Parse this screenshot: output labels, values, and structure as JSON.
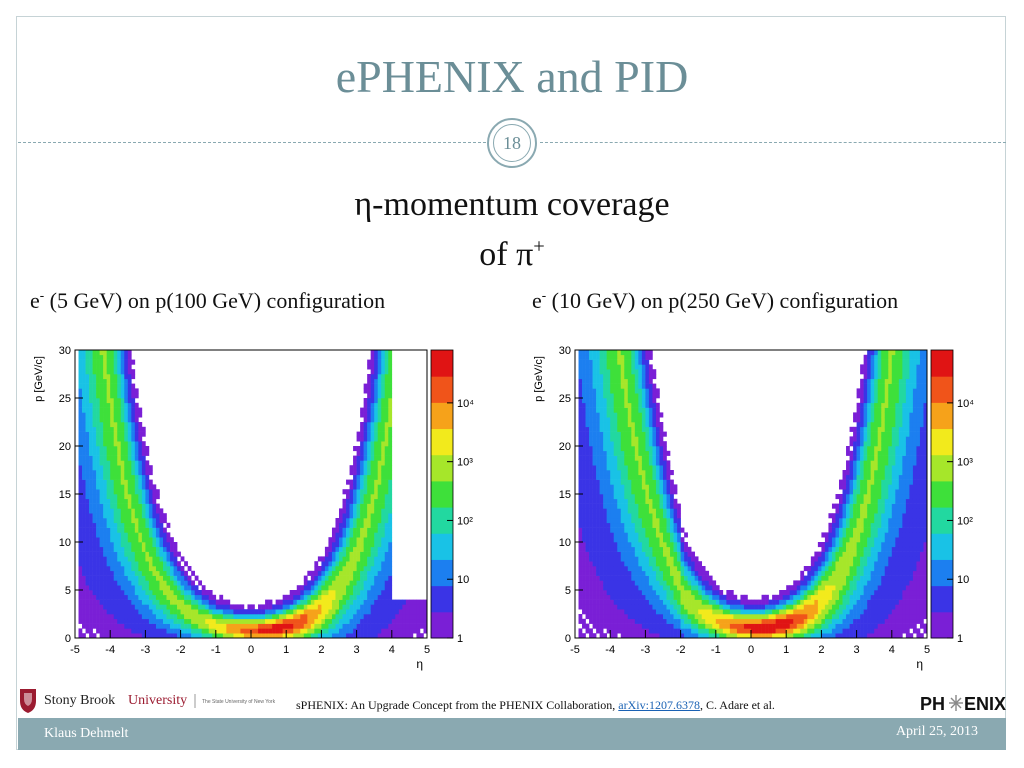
{
  "slide": {
    "title": "ePHENIX and PID",
    "page_number": "18",
    "heading_line1": "η-momentum coverage",
    "heading_line2_prefix": "of ",
    "heading_line2_symbol": "π",
    "heading_line2_sup": "+"
  },
  "configs": {
    "left": {
      "particle": "e",
      "sup": "-",
      "rest": " (5 GeV) on p(100 GeV) configuration"
    },
    "right": {
      "particle": "e",
      "sup": "-",
      "rest": " (10 GeV) on p(250 GeV) configuration"
    }
  },
  "chart_data": [
    {
      "type": "heatmap",
      "ylabel": "p [GeV/c]",
      "xlabel": "η",
      "xlim": [
        -5,
        5
      ],
      "ylim": [
        0,
        30
      ],
      "x_ticks": [
        "-5",
        "-4",
        "-3",
        "-2",
        "-1",
        "0",
        "1",
        "2",
        "3",
        "4",
        "5"
      ],
      "y_ticks": [
        "0",
        "5",
        "10",
        "15",
        "20",
        "25",
        "30"
      ],
      "colorbar_ticks": [
        "1",
        "10",
        "10²",
        "10³",
        "10⁴"
      ]
    },
    {
      "type": "heatmap",
      "ylabel": "p [GeV/c]",
      "xlabel": "η",
      "xlim": [
        -5,
        5
      ],
      "ylim": [
        0,
        30
      ],
      "x_ticks": [
        "-5",
        "-4",
        "-3",
        "-2",
        "-1",
        "0",
        "1",
        "2",
        "3",
        "4",
        "5"
      ],
      "y_ticks": [
        "0",
        "5",
        "10",
        "15",
        "20",
        "25",
        "30"
      ],
      "colorbar_ticks": [
        "1",
        "10",
        "10²",
        "10³",
        "10⁴"
      ]
    }
  ],
  "logos": {
    "sbu_name": "Stony Brook",
    "sbu_name2": "University",
    "sbu_tagline": "The State University of New York",
    "phenix_a": "PH",
    "phenix_b": "ENIX"
  },
  "caption": {
    "text_before": "sPHENIX: An Upgrade Concept from the PHENIX Collaboration, ",
    "link": "arXiv:1207.6378",
    "text_after": ", C. Adare et al."
  },
  "footer": {
    "author": "Klaus Dehmelt",
    "date": "April 25, 2013"
  },
  "colors": {
    "accent": "#8aa9b1",
    "title": "#6b8e97",
    "link": "#1a62b4"
  }
}
